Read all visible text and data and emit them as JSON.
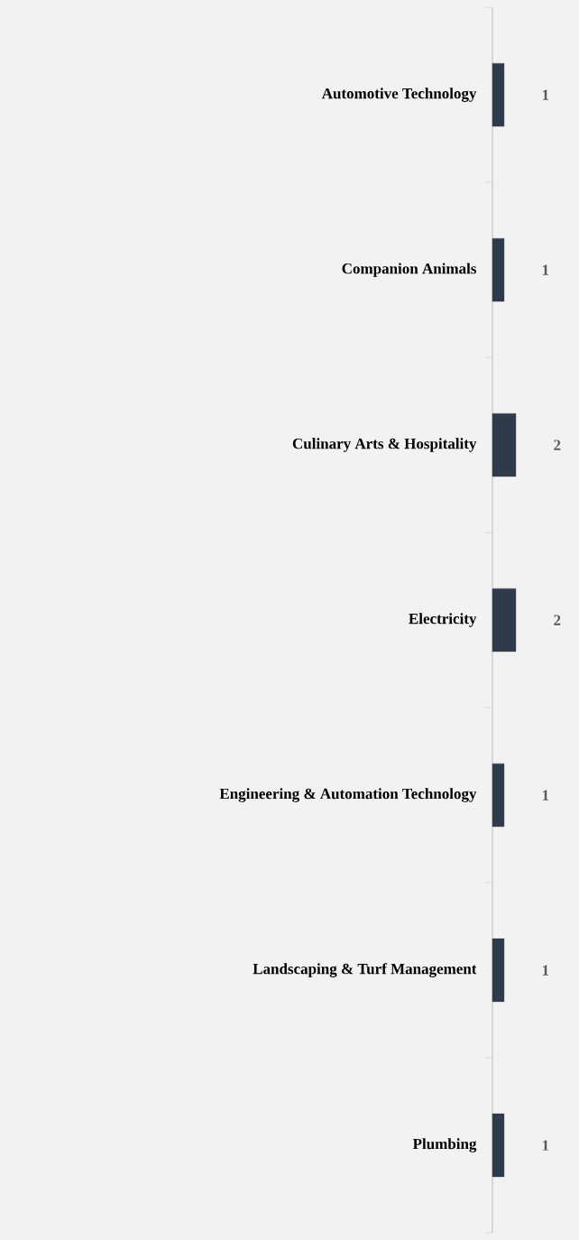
{
  "chart_data": {
    "type": "bar",
    "orientation": "horizontal",
    "categories": [
      "Automotive Technology",
      "Companion Animals",
      "Culinary Arts & Hospitality",
      "Electricity",
      "Engineering & Automation Technology",
      "Landscaping & Turf Management",
      "Plumbing"
    ],
    "values": [
      1,
      1,
      2,
      2,
      1,
      1,
      1
    ],
    "color": "#2f3a4a",
    "data_labels": true
  }
}
